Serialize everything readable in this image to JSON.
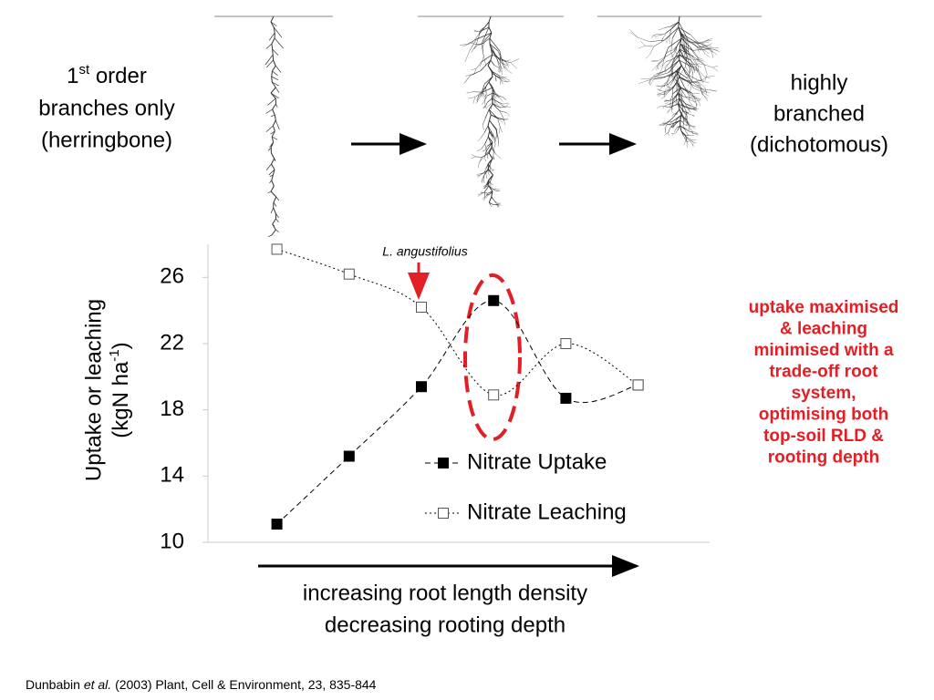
{
  "slide": {
    "left_label": {
      "first": "1",
      "superscript": "st",
      "rest": " order",
      "line2": "branches only",
      "line3": "(herringbone)"
    },
    "right_label": [
      "highly",
      "branched",
      "(dichotomous)"
    ],
    "note": [
      "uptake maximised",
      "& leaching",
      "minimised with a",
      "trade-off root",
      "system,",
      "optimising both",
      "top-soil RLD &",
      "rooting depth"
    ],
    "bottom_label": [
      "increasing root length density",
      "decreasing rooting depth"
    ],
    "citation": {
      "author": "Dunbabin ",
      "etal": "et al.",
      "rest": " (2003) Plant, Cell & Environment, 23, 835-844"
    }
  },
  "chart_data": {
    "type": "line",
    "y_label": {
      "line1": "Uptake or leaching",
      "line2_start": "(kgN ha",
      "superscript": "-1",
      "line2_end": ")"
    },
    "annotation": "L. angustifolius",
    "categories": [
      null,
      null,
      null,
      null,
      null,
      null
    ],
    "series": [
      {
        "name": "Nitrate Uptake",
        "color": "#000000",
        "marker_fill": "#000000",
        "line_style": "dashed",
        "values": [
          11.1,
          15.2,
          19.4,
          24.6,
          18.7,
          19.5
        ]
      },
      {
        "name": "Nitrate Leaching",
        "color": "#000000",
        "marker_fill": "#ffffff",
        "line_style": "dotted",
        "values": [
          27.7,
          26.2,
          24.2,
          18.9,
          22.0,
          19.5
        ]
      }
    ],
    "ylim": [
      10,
      28
    ],
    "yticks": [
      10,
      14,
      18,
      22,
      26
    ],
    "smooth": true
  }
}
